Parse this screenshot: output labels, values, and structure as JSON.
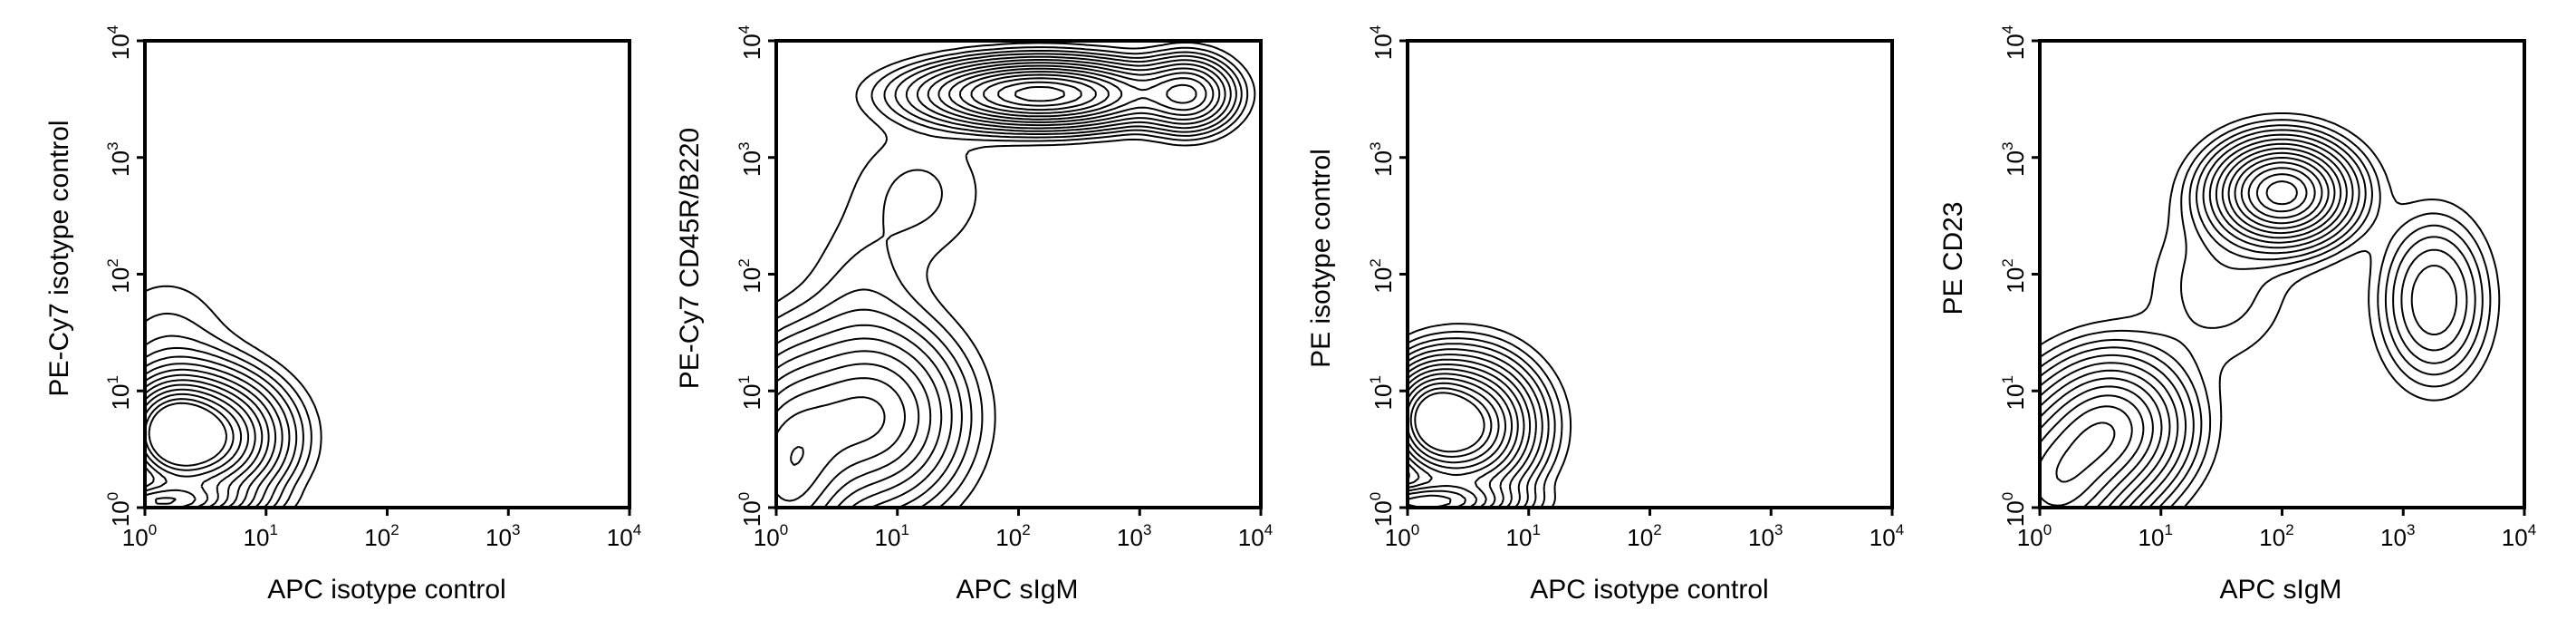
{
  "chart_data": [
    {
      "type": "contour",
      "xlabel": "APC isotype control",
      "ylabel": "PE-Cy7 isotype control",
      "xscale": "log",
      "yscale": "log",
      "xlim": [
        1,
        10000
      ],
      "ylim": [
        1,
        10000
      ],
      "tick_base": "10",
      "tick_exponents": [
        "0",
        "1",
        "2",
        "3",
        "4"
      ],
      "populations": [
        {
          "x": 3.0,
          "y": 4.0,
          "x_spread": 0.36,
          "y_spread": 0.3,
          "weight": 1.0
        },
        {
          "x": 1.6,
          "y": 4.5,
          "x_spread": 0.22,
          "y_spread": 0.25,
          "weight": 0.6
        },
        {
          "x": 1.2,
          "y": 1.1,
          "x_spread": 0.4,
          "y_spread": 0.1,
          "weight": 0.7
        },
        {
          "x": 1.5,
          "y": 20,
          "x_spread": 0.35,
          "y_spread": 0.45,
          "weight": 0.06
        }
      ]
    },
    {
      "type": "contour",
      "xlabel": "APC sIgM",
      "ylabel": "PE-Cy7 CD45R/B220",
      "xscale": "log",
      "yscale": "log",
      "xlim": [
        1,
        10000
      ],
      "ylim": [
        1,
        10000
      ],
      "tick_base": "10",
      "tick_exponents": [
        "0",
        "1",
        "2",
        "3",
        "4"
      ],
      "populations": [
        {
          "x": 150,
          "y": 3500,
          "x_spread": 0.55,
          "y_spread": 0.16,
          "weight": 1.0
        },
        {
          "x": 2500,
          "y": 3500,
          "x_spread": 0.22,
          "y_spread": 0.18,
          "weight": 0.45
        },
        {
          "x": 6,
          "y": 6,
          "x_spread": 0.42,
          "y_spread": 0.45,
          "weight": 0.5
        },
        {
          "x": 1.2,
          "y": 2,
          "x_spread": 0.3,
          "y_spread": 0.55,
          "weight": 0.5
        },
        {
          "x": 15,
          "y": 500,
          "x_spread": 0.4,
          "y_spread": 0.4,
          "weight": 0.05
        },
        {
          "x": 5,
          "y": 80,
          "x_spread": 0.3,
          "y_spread": 0.4,
          "weight": 0.04
        }
      ]
    },
    {
      "type": "contour",
      "xlabel": "APC isotype control",
      "ylabel": "PE isotype control",
      "xscale": "log",
      "yscale": "log",
      "xlim": [
        1,
        10000
      ],
      "ylim": [
        1,
        10000
      ],
      "tick_base": "10",
      "tick_exponents": [
        "0",
        "1",
        "2",
        "3",
        "4"
      ],
      "populations": [
        {
          "x": 3.0,
          "y": 5.0,
          "x_spread": 0.32,
          "y_spread": 0.32,
          "weight": 1.0
        },
        {
          "x": 1.5,
          "y": 6.0,
          "x_spread": 0.2,
          "y_spread": 0.25,
          "weight": 0.6
        },
        {
          "x": 1.3,
          "y": 1.1,
          "x_spread": 0.4,
          "y_spread": 0.1,
          "weight": 0.7
        }
      ]
    },
    {
      "type": "contour",
      "xlabel": "APC sIgM",
      "ylabel": "PE CD23",
      "xscale": "log",
      "yscale": "log",
      "xlim": [
        1,
        10000
      ],
      "ylim": [
        1,
        10000
      ],
      "tick_base": "10",
      "tick_exponents": [
        "0",
        "1",
        "2",
        "3",
        "4"
      ],
      "populations": [
        {
          "x": 100,
          "y": 500,
          "x_spread": 0.32,
          "y_spread": 0.25,
          "weight": 1.0
        },
        {
          "x": 1800,
          "y": 60,
          "x_spread": 0.25,
          "y_spread": 0.4,
          "weight": 0.25
        },
        {
          "x": 4,
          "y": 5,
          "x_spread": 0.35,
          "y_spread": 0.35,
          "weight": 0.6
        },
        {
          "x": 1.3,
          "y": 1.5,
          "x_spread": 0.35,
          "y_spread": 0.4,
          "weight": 0.6
        },
        {
          "x": 30,
          "y": 80,
          "x_spread": 0.4,
          "y_spread": 0.45,
          "weight": 0.06
        }
      ]
    }
  ]
}
